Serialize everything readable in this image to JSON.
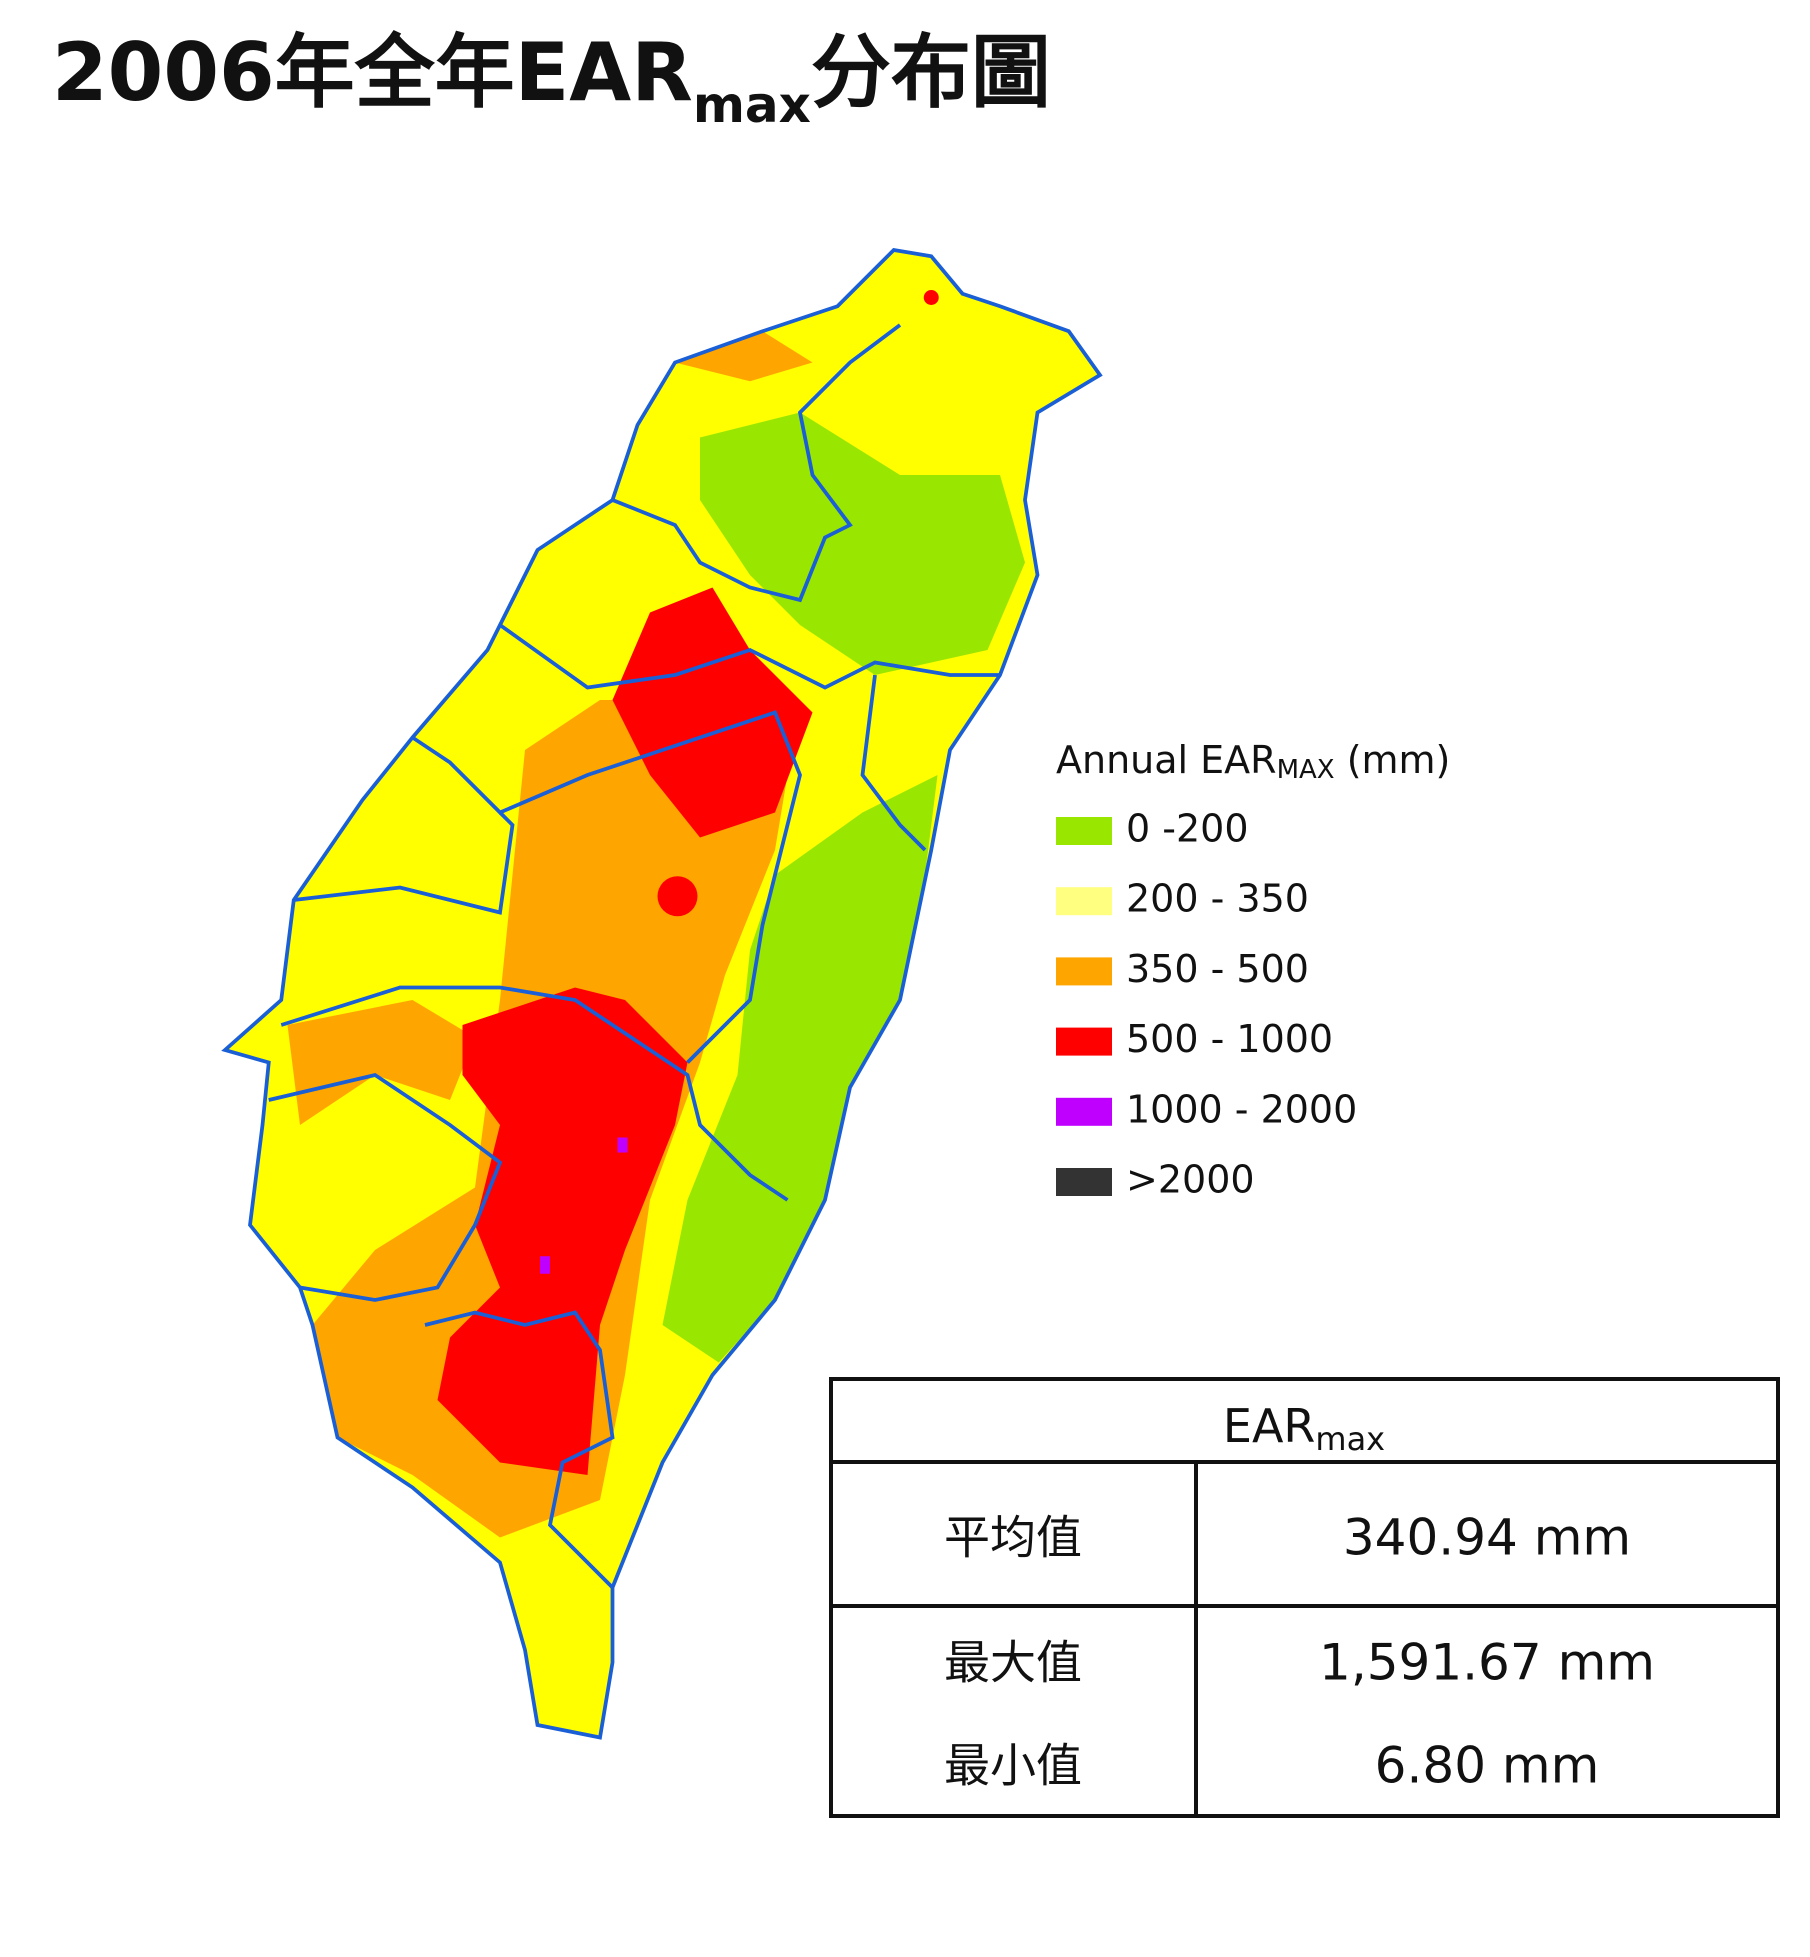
{
  "title": {
    "prefix": "2006年全年EAR",
    "subscript": "max",
    "suffix": "分布圖"
  },
  "legend": {
    "title": {
      "prefix": "Annual EAR",
      "subscript": "MAX",
      "suffix": " (mm)"
    },
    "items": [
      {
        "label": "0 -200",
        "color": "#99e600"
      },
      {
        "label": "200 - 350",
        "color": "#ffff80"
      },
      {
        "label": "350 - 500",
        "color": "#ffa500"
      },
      {
        "label": "500 - 1000",
        "color": "#ff0000"
      },
      {
        "label": "1000 - 2000",
        "color": "#c000ff"
      },
      {
        "label": ">2000",
        "color": "#333333"
      }
    ]
  },
  "table": {
    "header": {
      "prefix": "EAR",
      "subscript": "max"
    },
    "rows": [
      [
        "平均值",
        "340.94 mm"
      ],
      [
        "最大值",
        "1,591.67 mm"
      ],
      [
        "最小值",
        "6.80 mm"
      ]
    ]
  }
}
